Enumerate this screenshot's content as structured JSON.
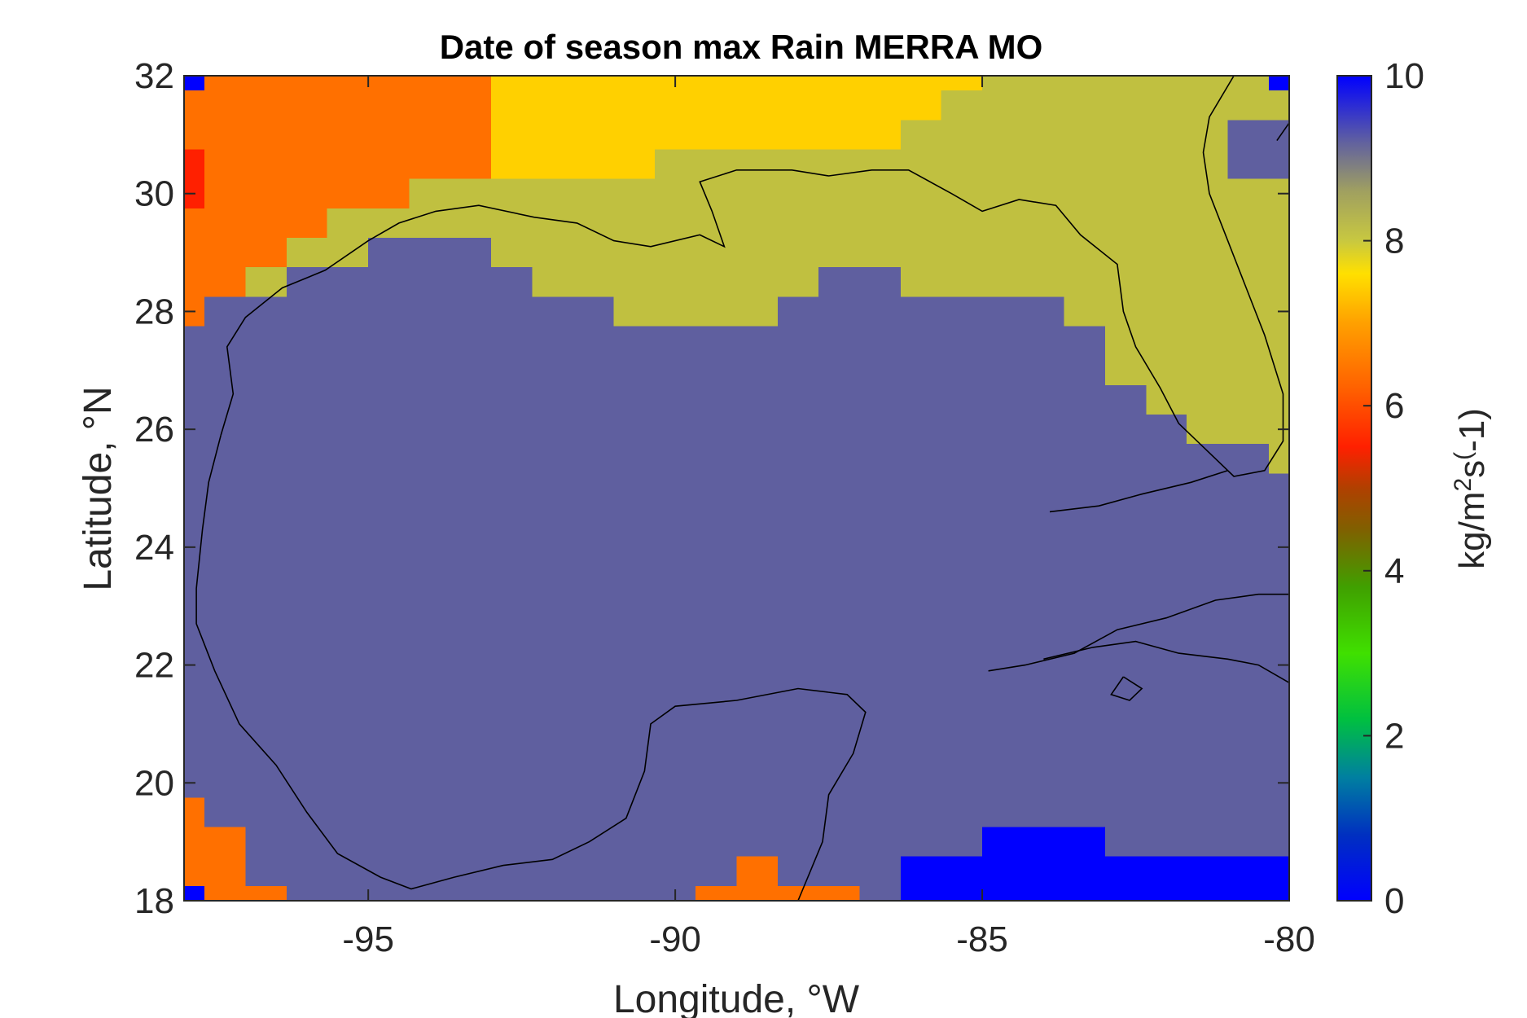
{
  "chart_data": {
    "type": "heatmap",
    "title": "Date of season max Rain MERRA MO",
    "xlabel": "Longitude, °W",
    "ylabel": "Latitude, °N",
    "colorbar_label": "kg/m^2s^(-1)",
    "colorbar_label_parts": [
      "kg/m",
      "2",
      "s",
      "(",
      "-1)"
    ],
    "xlim": [
      -98,
      -80
    ],
    "ylim": [
      18,
      32
    ],
    "xticks": [
      "-95",
      "-90",
      "-85",
      "-80"
    ],
    "yticks": [
      "18",
      "20",
      "22",
      "24",
      "26",
      "28",
      "30",
      "32"
    ],
    "colorbar_range": [
      0,
      10
    ],
    "colorbar_ticks": [
      "0",
      "2",
      "4",
      "6",
      "8",
      "10"
    ],
    "cell_size_deg": {
      "lon": 0.667,
      "lat": 0.5
    },
    "colors": {
      "0": "#5f5f9f",
      "6": "#ff7000",
      "5": "#ff2000",
      "7": "#ffd000",
      "8": "#c0c040",
      "10": "#0000ff"
    },
    "default_value": 0,
    "regions": [
      {
        "value": 6,
        "lon": [
          -98,
          -93
        ],
        "lat": [
          30.25,
          32
        ]
      },
      {
        "value": 6,
        "lon": [
          -98,
          -94.33
        ],
        "lat": [
          29.75,
          30.25
        ]
      },
      {
        "value": 6,
        "lon": [
          -98,
          -95.67
        ],
        "lat": [
          29.25,
          29.75
        ]
      },
      {
        "value": 6,
        "lon": [
          -98,
          -96.33
        ],
        "lat": [
          28.75,
          29.25
        ]
      },
      {
        "value": 6,
        "lon": [
          -98,
          -97
        ],
        "lat": [
          28.25,
          28.75
        ]
      },
      {
        "value": 6,
        "lon": [
          -98,
          -97.67
        ],
        "lat": [
          27.75,
          28.25
        ]
      },
      {
        "value": 5,
        "lon": [
          -98,
          -97.67
        ],
        "lat": [
          29.75,
          30.75
        ]
      },
      {
        "value": 10,
        "lon": [
          -98,
          -97.67
        ],
        "lat": [
          31.75,
          32
        ]
      },
      {
        "value": 7,
        "lon": [
          -93,
          -85
        ],
        "lat": [
          31.75,
          32
        ]
      },
      {
        "value": 7,
        "lon": [
          -93,
          -85.67
        ],
        "lat": [
          31.25,
          31.75
        ]
      },
      {
        "value": 7,
        "lon": [
          -93,
          -86.33
        ],
        "lat": [
          30.75,
          31.25
        ]
      },
      {
        "value": 7,
        "lon": [
          -93,
          -90.33
        ],
        "lat": [
          30.25,
          30.75
        ]
      },
      {
        "value": 8,
        "lon": [
          -85,
          -80.33
        ],
        "lat": [
          31.75,
          32
        ]
      },
      {
        "value": 10,
        "lon": [
          -80.33,
          -80
        ],
        "lat": [
          31.75,
          32
        ]
      },
      {
        "value": 8,
        "lon": [
          -85.67,
          -80
        ],
        "lat": [
          31.25,
          31.75
        ]
      },
      {
        "value": 8,
        "lon": [
          -86.33,
          -80
        ],
        "lat": [
          30.75,
          31.25
        ]
      },
      {
        "value": 8,
        "lon": [
          -90.33,
          -80
        ],
        "lat": [
          30.25,
          30.75
        ]
      },
      {
        "value": 8,
        "lon": [
          -94.33,
          -80
        ],
        "lat": [
          29.75,
          30.25
        ]
      },
      {
        "value": 8,
        "lon": [
          -95.67,
          -80
        ],
        "lat": [
          29.25,
          29.75
        ]
      },
      {
        "value": 8,
        "lon": [
          -96.33,
          -95.0
        ],
        "lat": [
          28.75,
          29.25
        ]
      },
      {
        "value": 8,
        "lon": [
          -93,
          -80
        ],
        "lat": [
          28.75,
          29.25
        ]
      },
      {
        "value": 8,
        "lon": [
          -97,
          -96.33
        ],
        "lat": [
          28.25,
          28.75
        ]
      },
      {
        "value": 8,
        "lon": [
          -92.33,
          -87.67
        ],
        "lat": [
          28.25,
          28.75
        ]
      },
      {
        "value": 8,
        "lon": [
          -86.33,
          -80
        ],
        "lat": [
          28.25,
          28.75
        ]
      },
      {
        "value": 8,
        "lon": [
          -91,
          -88.33
        ],
        "lat": [
          27.75,
          28.25
        ]
      },
      {
        "value": 8,
        "lon": [
          -83.67,
          -80
        ],
        "lat": [
          27.75,
          28.25
        ]
      },
      {
        "value": 8,
        "lon": [
          -83,
          -80
        ],
        "lat": [
          26.75,
          27.75
        ]
      },
      {
        "value": 8,
        "lon": [
          -82.33,
          -80
        ],
        "lat": [
          26.25,
          26.75
        ]
      },
      {
        "value": 8,
        "lon": [
          -81.67,
          -80
        ],
        "lat": [
          25.75,
          26.25
        ]
      },
      {
        "value": 8,
        "lon": [
          -80.33,
          -80
        ],
        "lat": [
          25.25,
          25.75
        ]
      },
      {
        "value": 0,
        "lon": [
          -81,
          -80
        ],
        "lat": [
          30.25,
          31.25
        ]
      },
      {
        "value": 6,
        "lon": [
          -98,
          -97.67
        ],
        "lat": [
          18,
          19.75
        ]
      },
      {
        "value": 6,
        "lon": [
          -97.67,
          -97
        ],
        "lat": [
          18.25,
          19.25
        ]
      },
      {
        "value": 6,
        "lon": [
          -97,
          -96.33
        ],
        "lat": [
          18,
          18.25
        ]
      },
      {
        "value": 6,
        "lon": [
          -97.67,
          -97
        ],
        "lat": [
          18,
          18.25
        ]
      },
      {
        "value": 10,
        "lon": [
          -98,
          -97.67
        ],
        "lat": [
          18,
          18.25
        ]
      },
      {
        "value": 6,
        "lon": [
          -89.67,
          -87
        ],
        "lat": [
          18,
          18.25
        ]
      },
      {
        "value": 6,
        "lon": [
          -89,
          -88.33
        ],
        "lat": [
          18.25,
          18.75
        ]
      },
      {
        "value": 10,
        "lon": [
          -86.33,
          -80
        ],
        "lat": [
          18,
          18.75
        ]
      },
      {
        "value": 10,
        "lon": [
          -85,
          -83
        ],
        "lat": [
          18.75,
          19.25
        ]
      }
    ],
    "coastline": [
      [
        [
          -97.4,
          25.9
        ],
        [
          -97.2,
          26.6
        ],
        [
          -97.3,
          27.4
        ],
        [
          -97.0,
          27.9
        ],
        [
          -96.4,
          28.4
        ],
        [
          -95.7,
          28.7
        ],
        [
          -95.0,
          29.2
        ],
        [
          -94.5,
          29.5
        ],
        [
          -93.9,
          29.7
        ],
        [
          -93.2,
          29.8
        ],
        [
          -92.3,
          29.6
        ],
        [
          -91.6,
          29.5
        ],
        [
          -91.0,
          29.2
        ],
        [
          -90.4,
          29.1
        ],
        [
          -89.6,
          29.3
        ],
        [
          -89.2,
          29.1
        ],
        [
          -89.4,
          29.7
        ],
        [
          -89.6,
          30.2
        ],
        [
          -89.0,
          30.4
        ],
        [
          -88.1,
          30.4
        ],
        [
          -87.5,
          30.3
        ],
        [
          -86.8,
          30.4
        ],
        [
          -86.2,
          30.4
        ],
        [
          -85.5,
          30.0
        ],
        [
          -85.0,
          29.7
        ],
        [
          -84.4,
          29.9
        ],
        [
          -83.8,
          29.8
        ],
        [
          -83.4,
          29.3
        ],
        [
          -82.8,
          28.8
        ],
        [
          -82.7,
          28.0
        ],
        [
          -82.5,
          27.4
        ],
        [
          -82.1,
          26.7
        ],
        [
          -81.8,
          26.1
        ],
        [
          -81.3,
          25.6
        ],
        [
          -80.9,
          25.2
        ],
        [
          -80.4,
          25.3
        ],
        [
          -80.1,
          25.8
        ],
        [
          -80.1,
          26.6
        ],
        [
          -80.4,
          27.6
        ],
        [
          -80.7,
          28.4
        ],
        [
          -81.0,
          29.2
        ],
        [
          -81.3,
          30.0
        ],
        [
          -81.4,
          30.7
        ],
        [
          -81.3,
          31.3
        ],
        [
          -80.9,
          32.0
        ]
      ],
      [
        [
          -97.4,
          25.9
        ],
        [
          -97.6,
          25.1
        ],
        [
          -97.7,
          24.3
        ],
        [
          -97.8,
          23.3
        ],
        [
          -97.8,
          22.7
        ],
        [
          -97.5,
          21.9
        ],
        [
          -97.1,
          21.0
        ],
        [
          -96.5,
          20.3
        ],
        [
          -96.0,
          19.5
        ],
        [
          -95.5,
          18.8
        ],
        [
          -94.8,
          18.4
        ],
        [
          -94.3,
          18.2
        ],
        [
          -93.6,
          18.4
        ],
        [
          -92.8,
          18.6
        ],
        [
          -92.0,
          18.7
        ],
        [
          -91.4,
          19.0
        ],
        [
          -90.8,
          19.4
        ],
        [
          -90.5,
          20.2
        ],
        [
          -90.4,
          21.0
        ],
        [
          -90.0,
          21.3
        ],
        [
          -89.0,
          21.4
        ],
        [
          -88.0,
          21.6
        ],
        [
          -87.2,
          21.5
        ],
        [
          -86.9,
          21.2
        ],
        [
          -87.1,
          20.5
        ],
        [
          -87.5,
          19.8
        ],
        [
          -87.6,
          19.0
        ],
        [
          -87.8,
          18.5
        ],
        [
          -88.0,
          18.0
        ]
      ],
      [
        [
          -84.9,
          21.9
        ],
        [
          -84.3,
          22.0
        ],
        [
          -83.5,
          22.2
        ],
        [
          -82.8,
          22.6
        ],
        [
          -82.0,
          22.8
        ],
        [
          -81.2,
          23.1
        ],
        [
          -80.5,
          23.2
        ],
        [
          -80.0,
          23.2
        ]
      ],
      [
        [
          -84.0,
          22.1
        ],
        [
          -83.2,
          22.3
        ],
        [
          -82.5,
          22.4
        ],
        [
          -81.8,
          22.2
        ],
        [
          -81.0,
          22.1
        ],
        [
          -80.5,
          22.0
        ],
        [
          -80.0,
          21.7
        ]
      ],
      [
        [
          -82.7,
          21.8
        ],
        [
          -82.9,
          21.5
        ],
        [
          -82.6,
          21.4
        ],
        [
          -82.4,
          21.6
        ],
        [
          -82.7,
          21.8
        ]
      ],
      [
        [
          -80.2,
          30.9
        ],
        [
          -80.0,
          31.2
        ]
      ],
      [
        [
          -83.9,
          24.6
        ],
        [
          -83.1,
          24.7
        ],
        [
          -82.4,
          24.9
        ],
        [
          -81.6,
          25.1
        ],
        [
          -81.0,
          25.3
        ]
      ]
    ]
  }
}
